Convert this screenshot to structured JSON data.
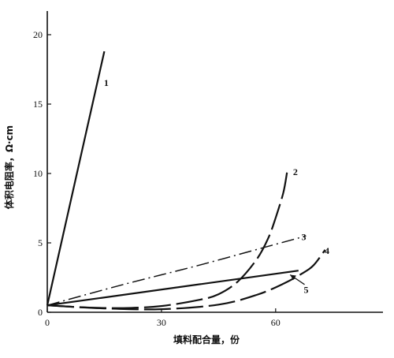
{
  "chart_data": {
    "type": "line",
    "xlabel": "填料配合量，份",
    "ylabel": "体积电阻率，Ω·cm",
    "xlim": [
      0,
      88
    ],
    "ylim": [
      0,
      21
    ],
    "x_ticks": [
      "0",
      "30",
      "60"
    ],
    "y_ticks": [
      "0",
      "5",
      "10",
      "15",
      "20"
    ],
    "x_tick_values": [
      0,
      30,
      60
    ],
    "y_tick_values": [
      0,
      5,
      10,
      15,
      20
    ],
    "grid": false,
    "series": [
      {
        "name": "1",
        "style": "solid",
        "x": [
          0,
          15
        ],
        "y": [
          0.5,
          18.8
        ]
      },
      {
        "name": "2",
        "style": "long-dash",
        "x": [
          0,
          10,
          20,
          30,
          40,
          45,
          50,
          55,
          58,
          60,
          62,
          63
        ],
        "y": [
          0.5,
          0.35,
          0.3,
          0.45,
          0.9,
          1.3,
          2.2,
          3.8,
          5.3,
          6.8,
          8.6,
          10.1
        ]
      },
      {
        "name": "3",
        "style": "dash-dot",
        "x": [
          0,
          20,
          40,
          60,
          68
        ],
        "y": [
          0.5,
          2.0,
          3.4,
          4.9,
          5.5
        ]
      },
      {
        "name": "4",
        "style": "long-dash",
        "x": [
          0,
          15,
          30,
          45,
          55,
          62,
          67,
          70,
          73
        ],
        "y": [
          0.5,
          0.28,
          0.22,
          0.55,
          1.25,
          2.05,
          2.8,
          3.4,
          4.5
        ]
      },
      {
        "name": "5",
        "style": "solid",
        "x": [
          0,
          66
        ],
        "y": [
          0.5,
          3.0
        ]
      }
    ],
    "curve_labels": [
      {
        "text": "1",
        "x": 15.5,
        "y": 16.3
      },
      {
        "text": "2",
        "x": 65.2,
        "y": 9.9
      },
      {
        "text": "3",
        "x": 67.4,
        "y": 5.2
      },
      {
        "text": "4",
        "x": 73.5,
        "y": 4.2
      },
      {
        "text": "5",
        "x": 68.0,
        "y": 1.4
      }
    ],
    "annotation_arrow": {
      "from": [
        67.6,
        2.0
      ],
      "to": [
        63.8,
        2.7
      ]
    }
  }
}
